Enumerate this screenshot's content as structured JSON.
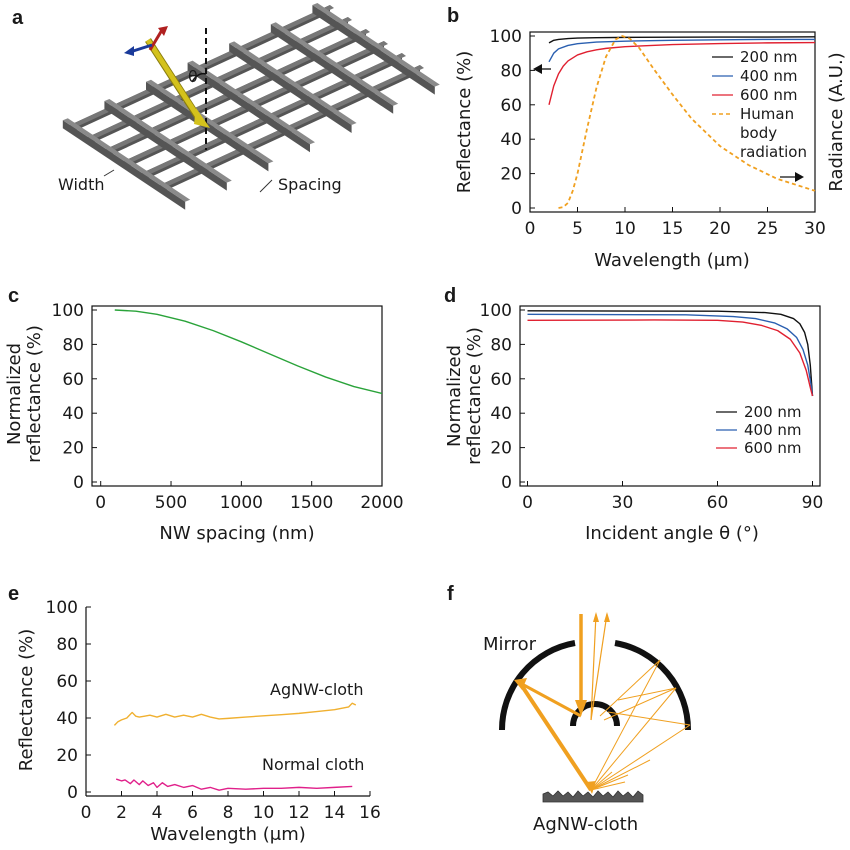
{
  "panels": {
    "a": {
      "letter": "a",
      "theta_label": "θ",
      "width_label": "Width",
      "spacing_label": "Spacing",
      "colors": {
        "bar": "#777777",
        "beam": "#c8b91a"
      }
    },
    "f": {
      "letter": "f",
      "mirror_label": "Mirror",
      "cloth_label": "AgNW-cloth",
      "colors": {
        "mirror": "#111111",
        "rays": "#f0a020",
        "cloth": "#555555"
      }
    }
  },
  "chart_data": [
    {
      "id": "b",
      "letter": "b",
      "type": "line",
      "xlabel": "Wavelength (μm)",
      "ylabel": "Reflectance (%)",
      "y2label": "Radiance (A.U.)",
      "xlim": [
        0,
        30
      ],
      "ylim": [
        0,
        100
      ],
      "xticks": [
        0,
        5,
        10,
        15,
        20,
        25,
        30
      ],
      "yticks": [
        0,
        20,
        40,
        60,
        80,
        100
      ],
      "legend_position": "right",
      "series": [
        {
          "name": "200 nm",
          "color": "#111111",
          "style": "solid",
          "x": [
            2,
            2.5,
            3,
            4,
            5,
            7,
            10,
            15,
            20,
            25,
            30
          ],
          "y": [
            96,
            97.5,
            98,
            98.5,
            98.8,
            99,
            99.2,
            99.3,
            99.4,
            99.4,
            99.5
          ]
        },
        {
          "name": "400 nm",
          "color": "#2a5fb0",
          "style": "solid",
          "x": [
            2,
            2.5,
            3,
            4,
            5,
            7,
            10,
            15,
            20,
            25,
            30
          ],
          "y": [
            85,
            90,
            92.5,
            94.5,
            95.5,
            96.5,
            97,
            97.5,
            97.8,
            98,
            98
          ]
        },
        {
          "name": "600 nm",
          "color": "#e02030",
          "style": "solid",
          "x": [
            2,
            2.5,
            3,
            3.5,
            4,
            5,
            6,
            7,
            8,
            10,
            15,
            20,
            25,
            30
          ],
          "y": [
            60,
            71,
            78,
            82.5,
            85.5,
            89,
            90.8,
            92,
            92.8,
            93.8,
            95,
            95.6,
            96,
            96.2
          ]
        },
        {
          "name": "Human body radiation",
          "color": "#f0a020",
          "style": "dashed",
          "x": [
            3,
            3.5,
            4,
            4.5,
            5,
            5.5,
            6,
            7,
            8,
            9,
            9.7,
            10.5,
            11.5,
            13,
            15,
            17,
            20,
            23,
            26,
            28,
            30
          ],
          "y": [
            0,
            0.5,
            3,
            10,
            20,
            33,
            46,
            70,
            88,
            98,
            100,
            98.5,
            93,
            81,
            66,
            52,
            36,
            25,
            17,
            13.5,
            10
          ]
        }
      ]
    },
    {
      "id": "c",
      "letter": "c",
      "type": "line",
      "xlabel": "NW spacing (nm)",
      "ylabel": "Normalized reflectance (%)",
      "xlim": [
        0,
        2000
      ],
      "ylim": [
        0,
        100
      ],
      "xticks": [
        0,
        500,
        1000,
        1500,
        2000
      ],
      "yticks": [
        0,
        20,
        40,
        60,
        80,
        100
      ],
      "series": [
        {
          "color": "#2aa33a",
          "style": "solid",
          "x": [
            100,
            250,
            400,
            600,
            800,
            1000,
            1200,
            1400,
            1600,
            1800,
            2000
          ],
          "y": [
            100,
            99.3,
            97.5,
            93.5,
            88,
            81.5,
            74.5,
            67.5,
            61,
            55.5,
            51.5
          ]
        }
      ]
    },
    {
      "id": "d",
      "letter": "d",
      "type": "line",
      "xlabel": "Incident angle θ (°)",
      "ylabel": "Normalized reflectance (%)",
      "xlim": [
        0,
        90
      ],
      "ylim": [
        0,
        100
      ],
      "xticks": [
        0,
        30,
        60,
        90
      ],
      "yticks": [
        0,
        20,
        40,
        60,
        80,
        100
      ],
      "legend_position": "bottom-right",
      "series": [
        {
          "name": "200 nm",
          "color": "#111111",
          "style": "solid",
          "x": [
            0,
            60,
            75,
            80,
            84,
            86,
            87.5,
            88.5,
            89.3,
            90
          ],
          "y": [
            99.5,
            99.3,
            98.5,
            97.5,
            95,
            92,
            87,
            80,
            68,
            50
          ]
        },
        {
          "name": "400 nm",
          "color": "#2a5fb0",
          "style": "solid",
          "x": [
            0,
            50,
            65,
            72,
            78,
            82,
            85,
            87,
            88.5,
            89.5,
            90
          ],
          "y": [
            97.5,
            97.2,
            96.2,
            95,
            92.5,
            89,
            84,
            77,
            68,
            57,
            50
          ]
        },
        {
          "name": "600 nm",
          "color": "#e02030",
          "style": "solid",
          "x": [
            0,
            40,
            60,
            68,
            74,
            79,
            83,
            86,
            88,
            89.3,
            90
          ],
          "y": [
            94,
            94.2,
            94,
            93,
            91,
            88,
            83,
            75,
            65,
            55,
            50
          ]
        }
      ]
    },
    {
      "id": "e",
      "letter": "e",
      "type": "line",
      "xlabel": "Wavelength (μm)",
      "ylabel": "Reflectance (%)",
      "xlim": [
        0,
        16
      ],
      "ylim": [
        0,
        100
      ],
      "xticks": [
        0,
        2,
        4,
        6,
        8,
        10,
        12,
        14,
        16
      ],
      "yticks": [
        0,
        20,
        40,
        60,
        80,
        100
      ],
      "annotations": [
        "AgNW-cloth",
        "Normal cloth"
      ],
      "series": [
        {
          "color": "#f0b030",
          "style": "solid",
          "x": [
            1.6,
            1.8,
            2.0,
            2.3,
            2.6,
            2.8,
            3.0,
            3.3,
            3.6,
            4.0,
            4.5,
            5.0,
            5.5,
            6.0,
            6.5,
            7.0,
            7.5,
            8.0,
            9.0,
            10.0,
            11.0,
            12.0,
            13.0,
            14.0,
            14.8,
            15.0,
            15.2
          ],
          "y": [
            36,
            38,
            39,
            40,
            43,
            41,
            40.5,
            41,
            41.5,
            40.5,
            42,
            40.5,
            41.5,
            40.5,
            42,
            40.5,
            39.5,
            39.8,
            40.5,
            41.2,
            41.8,
            42.5,
            43.5,
            44.5,
            46,
            48,
            47
          ]
        },
        {
          "color": "#e0208a",
          "style": "solid",
          "x": [
            1.7,
            2.0,
            2.2,
            2.5,
            2.7,
            3.0,
            3.2,
            3.5,
            3.8,
            4.0,
            4.3,
            4.6,
            5.0,
            5.5,
            6.0,
            6.5,
            7.0,
            7.5,
            8.0,
            9.0,
            10.0,
            11.0,
            12.0,
            13.0,
            14.0,
            15.0
          ],
          "y": [
            7,
            6,
            6.5,
            4.5,
            6.5,
            4,
            6,
            3.5,
            5,
            2.5,
            5,
            3,
            4,
            2.5,
            3.5,
            1.5,
            2.5,
            1,
            2,
            1.5,
            2,
            2,
            2.5,
            2,
            2.5,
            3
          ]
        }
      ]
    }
  ]
}
